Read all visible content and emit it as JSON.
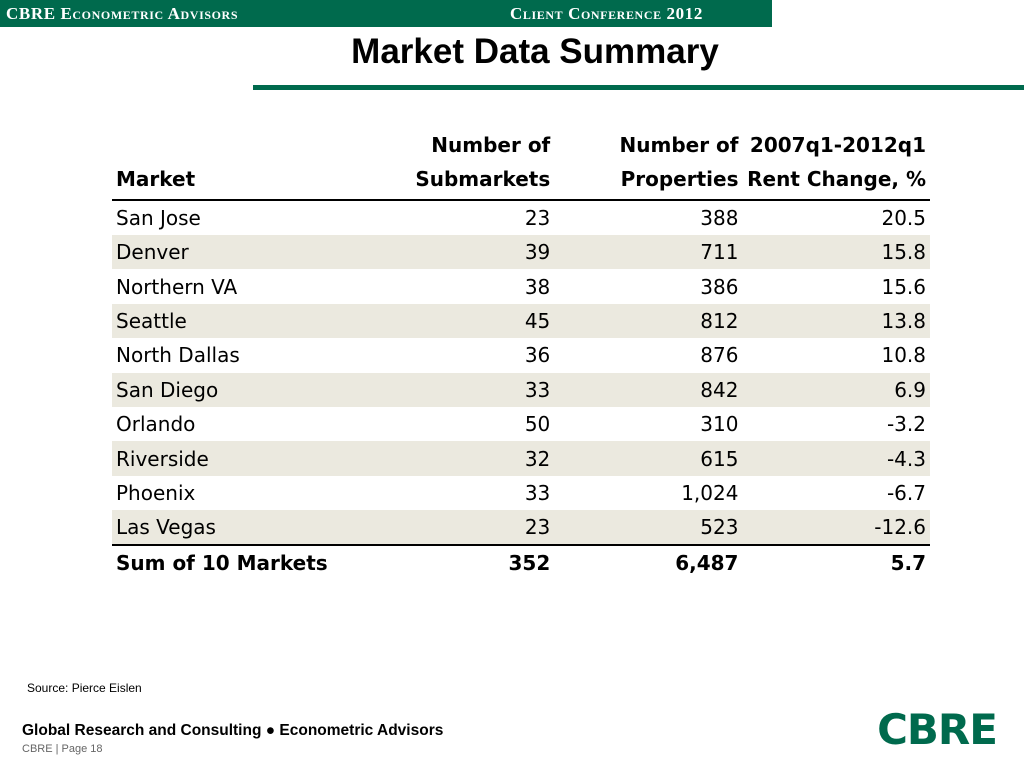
{
  "header": {
    "left_text": "CBRE Econometric Advisors",
    "right_text": "Client Conference 2012"
  },
  "page_title": "Market Data Summary",
  "table": {
    "headers": [
      [
        "",
        "Market"
      ],
      [
        "Number of",
        "Submarkets"
      ],
      [
        "Number of",
        "Properties"
      ],
      [
        "2007q1-2012q1",
        "Rent Change, %"
      ]
    ],
    "rows": [
      [
        "San Jose",
        "23",
        "388",
        "20.5"
      ],
      [
        "Denver",
        "39",
        "711",
        "15.8"
      ],
      [
        "Northern VA",
        "38",
        "386",
        "15.6"
      ],
      [
        "Seattle",
        "45",
        "812",
        "13.8"
      ],
      [
        "North Dallas",
        "36",
        "876",
        "10.8"
      ],
      [
        "San Diego",
        "33",
        "842",
        "6.9"
      ],
      [
        "Orlando",
        "50",
        "310",
        "-3.2"
      ],
      [
        "Riverside",
        "32",
        "615",
        "-4.3"
      ],
      [
        "Phoenix",
        "33",
        "1,024",
        "-6.7"
      ],
      [
        "Las Vegas",
        "23",
        "523",
        "-12.6"
      ]
    ],
    "total": [
      "Sum of 10 Markets",
      "352",
      "6,487",
      "5.7"
    ]
  },
  "source": "Source: Pierce Eislen",
  "footer": {
    "tagline": "Global Research and Consulting ● Econometric Advisors",
    "page": "CBRE  |  Page 18",
    "logo_text": "CBRE"
  },
  "colors": {
    "brand_green": "#006a4d",
    "row_shade": "#ebe9df"
  }
}
